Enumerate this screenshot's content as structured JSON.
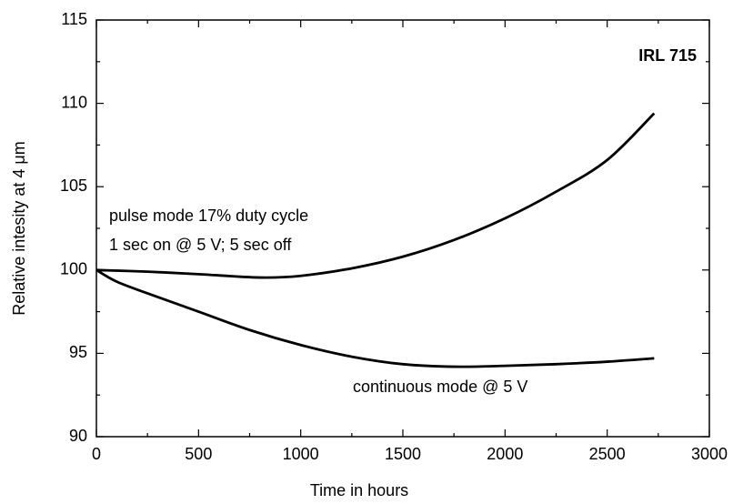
{
  "chart_data": {
    "type": "line",
    "xlabel": "Time in hours",
    "ylabel": "Relative intesity at 4 μm",
    "annotations": [
      "IRL 715",
      "pulse mode 17% duty cycle",
      "1 sec on @ 5 V; 5 sec off",
      "continuous mode @ 5 V"
    ],
    "series": [
      {
        "color": "#000000",
        "x": [
          0,
          250,
          500,
          800,
          1000,
          1250,
          1500,
          1750,
          2000,
          2250,
          2500,
          2730
        ],
        "values": [
          100,
          99.9,
          99.75,
          99.55,
          99.65,
          100.1,
          100.8,
          101.8,
          103.1,
          104.7,
          106.6,
          109.4
        ]
      },
      {
        "color": "#000000",
        "x": [
          0,
          100,
          250,
          500,
          750,
          1000,
          1250,
          1500,
          1750,
          2000,
          2250,
          2500,
          2730
        ],
        "values": [
          100,
          99.3,
          98.6,
          97.5,
          96.4,
          95.5,
          94.8,
          94.35,
          94.2,
          94.25,
          94.35,
          94.5,
          94.7
        ]
      }
    ],
    "xlim": [
      0,
      3000
    ],
    "xticks": [
      0,
      500,
      1000,
      1500,
      2000,
      2500,
      3000
    ],
    "ylim": [
      90,
      115
    ],
    "yticks": [
      90,
      95,
      100,
      105,
      110,
      115
    ],
    "grid": false
  }
}
